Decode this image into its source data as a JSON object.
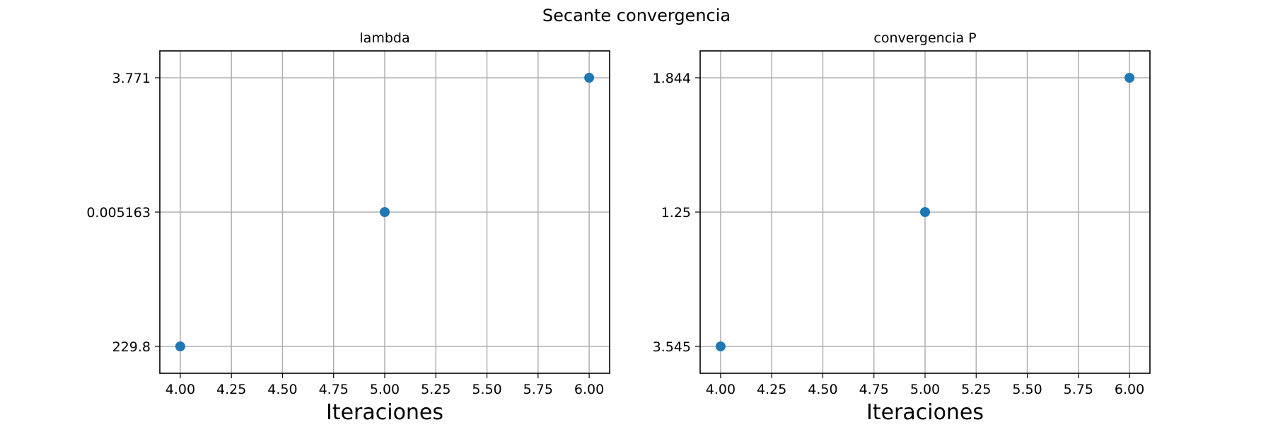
{
  "figure": {
    "suptitle": "Secante convergencia"
  },
  "chart_data": [
    {
      "type": "scatter",
      "title": "lambda",
      "xlabel": "Iteraciones",
      "ylabel": "",
      "x": [
        4,
        5,
        6
      ],
      "y_categories": [
        "229.8",
        "0.005163",
        "3.771"
      ],
      "points": [
        {
          "x": 4,
          "y": "229.8"
        },
        {
          "x": 5,
          "y": "0.005163"
        },
        {
          "x": 6,
          "y": "3.771"
        }
      ],
      "xlim": [
        3.9,
        6.1
      ],
      "xticks": [
        "4.00",
        "4.25",
        "4.50",
        "4.75",
        "5.00",
        "5.25",
        "5.50",
        "5.75",
        "6.00"
      ],
      "grid": true,
      "color": "#1f77b4"
    },
    {
      "type": "scatter",
      "title": "convergencia P",
      "xlabel": "Iteraciones",
      "ylabel": "",
      "x": [
        4,
        5,
        6
      ],
      "y_categories": [
        "3.545",
        "1.25",
        "1.844"
      ],
      "points": [
        {
          "x": 4,
          "y": "3.545"
        },
        {
          "x": 5,
          "y": "1.25"
        },
        {
          "x": 6,
          "y": "1.844"
        }
      ],
      "xlim": [
        3.9,
        6.1
      ],
      "xticks": [
        "4.00",
        "4.25",
        "4.50",
        "4.75",
        "5.00",
        "5.25",
        "5.50",
        "5.75",
        "6.00"
      ],
      "grid": true,
      "color": "#1f77b4"
    }
  ]
}
